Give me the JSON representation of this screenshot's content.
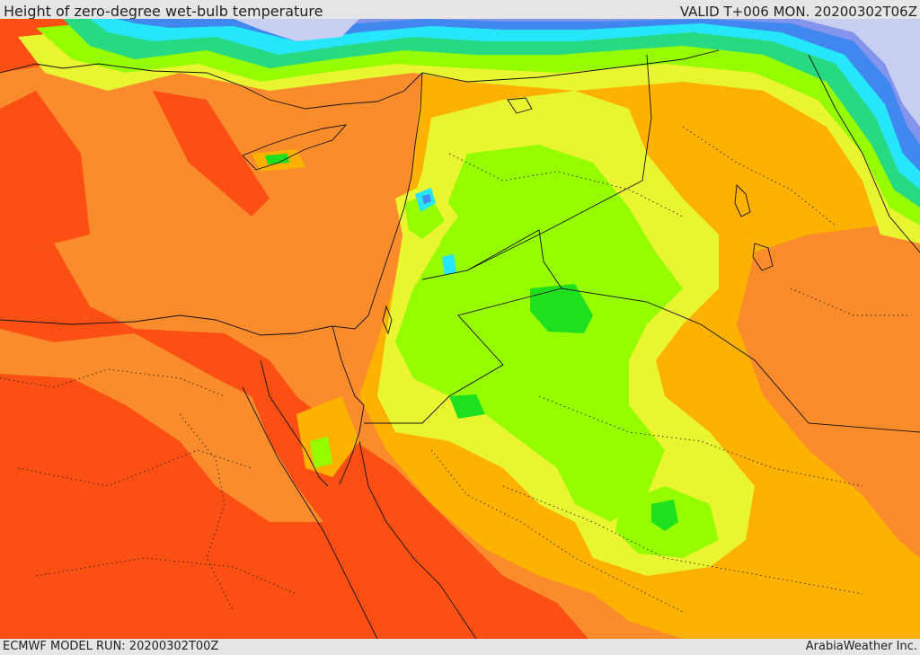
{
  "header": {
    "title": "Height of zero-degree wet-bulb temperature",
    "valid": "VALID T+006 MON. 20200302T06Z"
  },
  "footer": {
    "model_run": "ECMWF MODEL RUN: 20200302T00Z",
    "credit": "ArabiaWeather Inc."
  },
  "palette": {
    "darkred": "#fb4f14",
    "orange": "#fb8c2b",
    "amber": "#fdb100",
    "yellow": "#e9f531",
    "lime": "#96fc00",
    "green": "#1ee01e",
    "teal": "#27d980",
    "cyan": "#25e6fa",
    "blue": "#4187f0",
    "violet": "#8294ec",
    "lavender": "#c8cff2",
    "border": "#111111"
  }
}
